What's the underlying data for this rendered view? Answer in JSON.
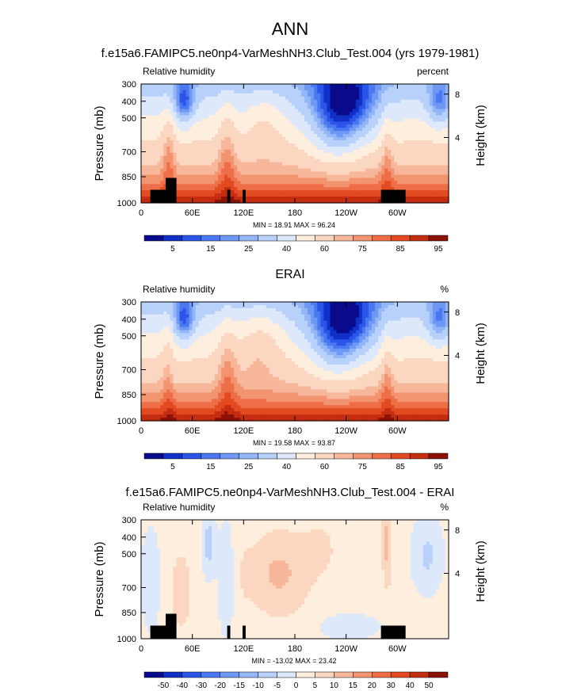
{
  "page": {
    "title": "ANN"
  },
  "chart_data": [
    {
      "type": "heatmap",
      "title": "f.e15a6.FAMIPC5.ne0np4-VarMeshNH3.Club_Test.004 (yrs 1979-1981)",
      "left_label": "Relative humidity",
      "right_label": "percent",
      "ylabel": "Pressure (mb)",
      "ylabel_right": "Height (km)",
      "x_ticks": [
        "0",
        "60E",
        "120E",
        "180",
        "120W",
        "60W"
      ],
      "y_ticks": [
        "300",
        "400",
        "500",
        "700",
        "850",
        "1000"
      ],
      "y_right_ticks": [
        "8",
        "4"
      ],
      "stats": "MIN = 18.91  MAX = 96.24",
      "colorbar_labels": [
        "5",
        "15",
        "25",
        "40",
        "60",
        "75",
        "85",
        "95"
      ],
      "colorbar_levels": [
        0,
        5,
        10,
        15,
        20,
        25,
        30,
        40,
        50,
        60,
        70,
        75,
        80,
        85,
        90,
        95
      ],
      "topography": true,
      "colors": [
        "#0a0a8c",
        "#1030c8",
        "#2a55e8",
        "#4a78f0",
        "#6e98f4",
        "#93b6f7",
        "#b8d1fa",
        "#dde8fb",
        "#fdeede",
        "#fbd6c0",
        "#f7b79a",
        "#f39470",
        "#ee6e47",
        "#e24a22",
        "#c42d10",
        "#8c1208"
      ]
    },
    {
      "type": "heatmap",
      "title": "ERAI",
      "left_label": "Relative humidity",
      "right_label": "%",
      "ylabel": "Pressure (mb)",
      "ylabel_right": "Height (km)",
      "x_ticks": [
        "0",
        "60E",
        "120E",
        "180",
        "120W",
        "60W"
      ],
      "y_ticks": [
        "300",
        "400",
        "500",
        "700",
        "850",
        "1000"
      ],
      "y_right_ticks": [
        "8",
        "4"
      ],
      "stats": "MIN = 19.58  MAX = 93.87",
      "colorbar_labels": [
        "5",
        "15",
        "25",
        "40",
        "60",
        "75",
        "85",
        "95"
      ],
      "colorbar_levels": [
        0,
        5,
        10,
        15,
        20,
        25,
        30,
        40,
        50,
        60,
        70,
        75,
        80,
        85,
        90,
        95
      ],
      "topography": false,
      "colors": [
        "#0a0a8c",
        "#1030c8",
        "#2a55e8",
        "#4a78f0",
        "#6e98f4",
        "#93b6f7",
        "#b8d1fa",
        "#dde8fb",
        "#fdeede",
        "#fbd6c0",
        "#f7b79a",
        "#f39470",
        "#ee6e47",
        "#e24a22",
        "#c42d10",
        "#8c1208"
      ]
    },
    {
      "type": "heatmap",
      "title": "f.e15a6.FAMIPC5.ne0np4-VarMeshNH3.Club_Test.004 - ERAI",
      "left_label": "Relative humidity",
      "right_label": "%",
      "ylabel": "Pressure (mb)",
      "ylabel_right": "Height (km)",
      "x_ticks": [
        "0",
        "60E",
        "120E",
        "180",
        "120W",
        "60W"
      ],
      "y_ticks": [
        "300",
        "400",
        "500",
        "700",
        "850",
        "1000"
      ],
      "y_right_ticks": [
        "8",
        "4"
      ],
      "stats": "MIN = -13.02  MAX = 23.42",
      "colorbar_labels": [
        "-50",
        "-40",
        "-30",
        "-20",
        "-15",
        "-10",
        "-5",
        "0",
        "5",
        "10",
        "15",
        "20",
        "30",
        "40",
        "50"
      ],
      "topography": true,
      "colors": [
        "#0a0a8c",
        "#1030c8",
        "#2a55e8",
        "#4a78f0",
        "#6e98f4",
        "#93b6f7",
        "#b8d1fa",
        "#dde8fb",
        "#fdeede",
        "#fbd6c0",
        "#f7b79a",
        "#f39470",
        "#ee6e47",
        "#e24a22",
        "#c42d10",
        "#8c1208"
      ]
    }
  ]
}
